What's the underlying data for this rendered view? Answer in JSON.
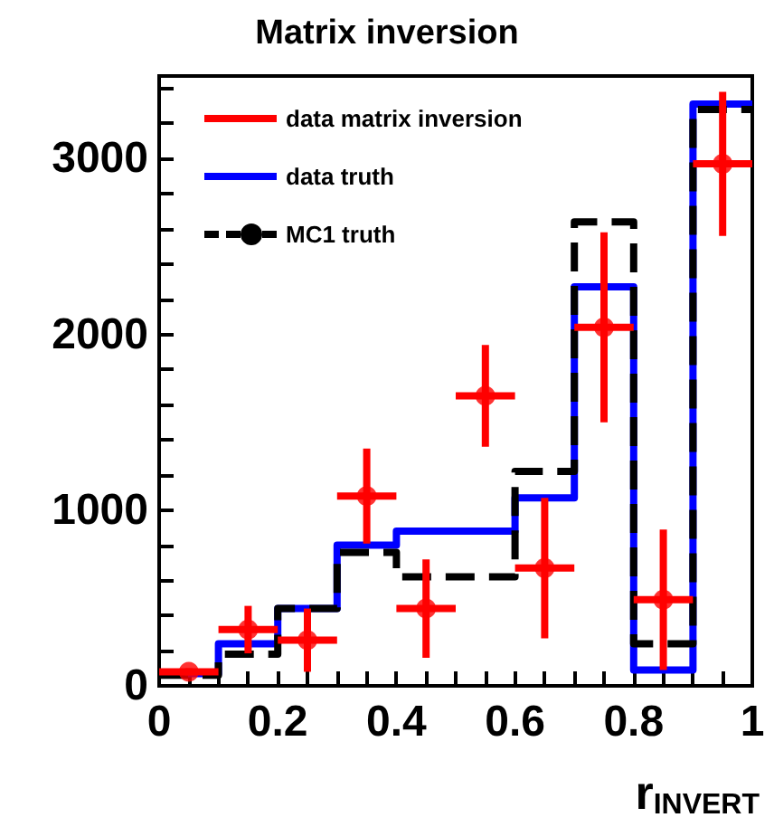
{
  "chart_data": {
    "type": "histogram",
    "title": "Matrix inversion",
    "xlabel": "r$_{INVERT}$",
    "bins": [
      0,
      0.1,
      0.2,
      0.3,
      0.4,
      0.5,
      0.6,
      0.7,
      0.8,
      0.9,
      1
    ],
    "series": [
      {
        "name": "data matrix inversion",
        "type": "scatter",
        "color": "#ff0000",
        "marker": "circle",
        "x": [
          0.05,
          0.15,
          0.25,
          0.35,
          0.45,
          0.55,
          0.65,
          0.75,
          0.85,
          0.95
        ],
        "values": [
          80,
          320,
          260,
          1080,
          440,
          1650,
          670,
          2040,
          490,
          2970
        ],
        "errors": [
          20,
          135,
          180,
          270,
          280,
          290,
          400,
          540,
          400,
          410
        ],
        "xerrors": [
          0.05,
          0.05,
          0.05,
          0.05,
          0.05,
          0.05,
          0.05,
          0.05,
          0.05,
          0.05
        ]
      },
      {
        "name": "data truth",
        "type": "histogram",
        "color": "#0000ff",
        "line_style": "solid",
        "values": [
          70,
          240,
          440,
          800,
          880,
          880,
          1070,
          2270,
          90,
          3310
        ]
      },
      {
        "name": "MC1 truth",
        "type": "histogram",
        "color": "#000000",
        "line_style": "dashed",
        "marker": "circle",
        "values": [
          60,
          180,
          440,
          760,
          620,
          620,
          1220,
          2640,
          240,
          3280
        ]
      }
    ],
    "xlim": [
      0,
      1
    ],
    "xticks": [
      0,
      {
        "value": 0.05,
        "label": null
      },
      {
        "value": 0.1,
        "label": null
      },
      {
        "value": 0.15,
        "label": null
      },
      0.2,
      {
        "value": 0.25,
        "label": null
      },
      {
        "value": 0.3,
        "label": null
      },
      {
        "value": 0.35,
        "label": null
      },
      0.4,
      {
        "value": 0.45,
        "label": null
      },
      {
        "value": 0.5,
        "label": null
      },
      {
        "value": 0.55,
        "label": null
      },
      0.6,
      {
        "value": 0.65,
        "label": null
      },
      {
        "value": 0.7,
        "label": null
      },
      {
        "value": 0.75,
        "label": null
      },
      0.8,
      {
        "value": 0.85,
        "label": null
      },
      {
        "value": 0.9,
        "label": null
      },
      {
        "value": 0.95,
        "label": null
      },
      1
    ],
    "ylim": [
      0,
      3470
    ],
    "yticks": [
      0,
      {
        "value": 200,
        "label": null
      },
      {
        "value": 400,
        "label": null
      },
      {
        "value": 600,
        "label": null
      },
      {
        "value": 800,
        "label": null
      },
      1000,
      {
        "value": 1200,
        "label": null
      },
      {
        "value": 1400,
        "label": null
      },
      {
        "value": 1600,
        "label": null
      },
      {
        "value": 1800,
        "label": null
      },
      2000,
      {
        "value": 2200,
        "label": null
      },
      {
        "value": 2400,
        "label": null
      },
      {
        "value": 2600,
        "label": null
      },
      {
        "value": 2800,
        "label": null
      },
      3000,
      {
        "value": 3200,
        "label": null
      },
      {
        "value": 3400,
        "label": null
      }
    ],
    "grid": false,
    "legend": "top left"
  }
}
